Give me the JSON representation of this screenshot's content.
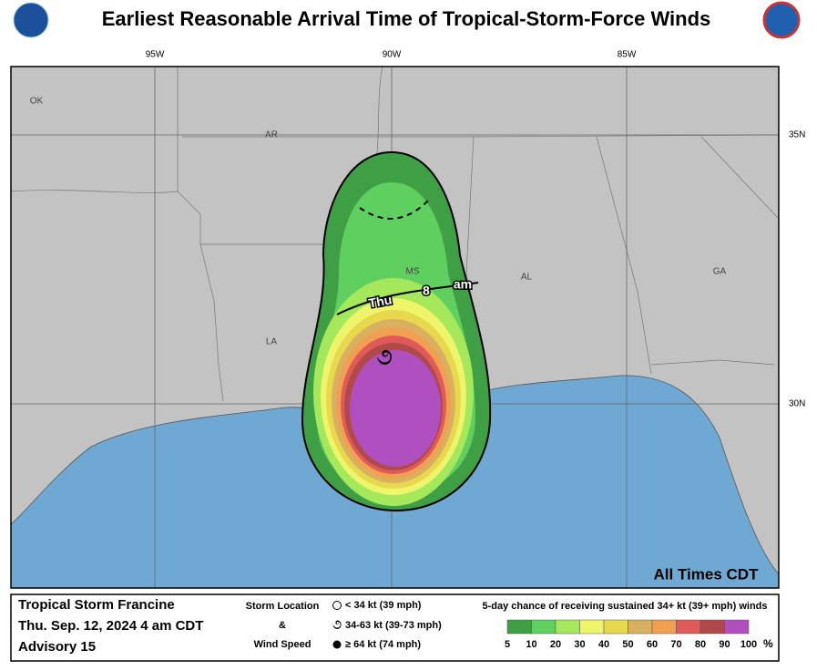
{
  "header": {
    "title": "Earliest Reasonable Arrival Time of Tropical-Storm-Force Winds"
  },
  "map": {
    "longitudes": [
      "95W",
      "90W",
      "85W"
    ],
    "latitudes": [
      "35N",
      "30N"
    ],
    "states": [
      "OK",
      "AR",
      "LA",
      "MS",
      "AL",
      "GA"
    ],
    "arrival_label": [
      "Thu",
      "8",
      "am"
    ],
    "note": "All Times CDT"
  },
  "footer": {
    "storm": "Tropical Storm Francine",
    "date": "Thu. Sep. 12, 2024  4 am CDT",
    "advisory": "Advisory 15",
    "key_title": [
      "Storm Location",
      "&",
      "Wind Speed"
    ],
    "key_items": [
      "< 34 kt (39 mph)",
      "34-63 kt (39-73 mph)",
      "≥ 64 kt (74 mph)"
    ],
    "legend_title": "5-day chance of receiving sustained 34+ kt (39+ mph) winds",
    "legend_ticks": [
      5,
      10,
      20,
      30,
      40,
      50,
      60,
      70,
      80,
      90,
      100
    ],
    "legend_unit": "%",
    "legend_colors": [
      "#3f9f45",
      "#5fd05f",
      "#a6e85c",
      "#eef56a",
      "#e8d84e",
      "#d8b060",
      "#f0a050",
      "#e05a5a",
      "#b04a4a",
      "#b050c0"
    ]
  }
}
